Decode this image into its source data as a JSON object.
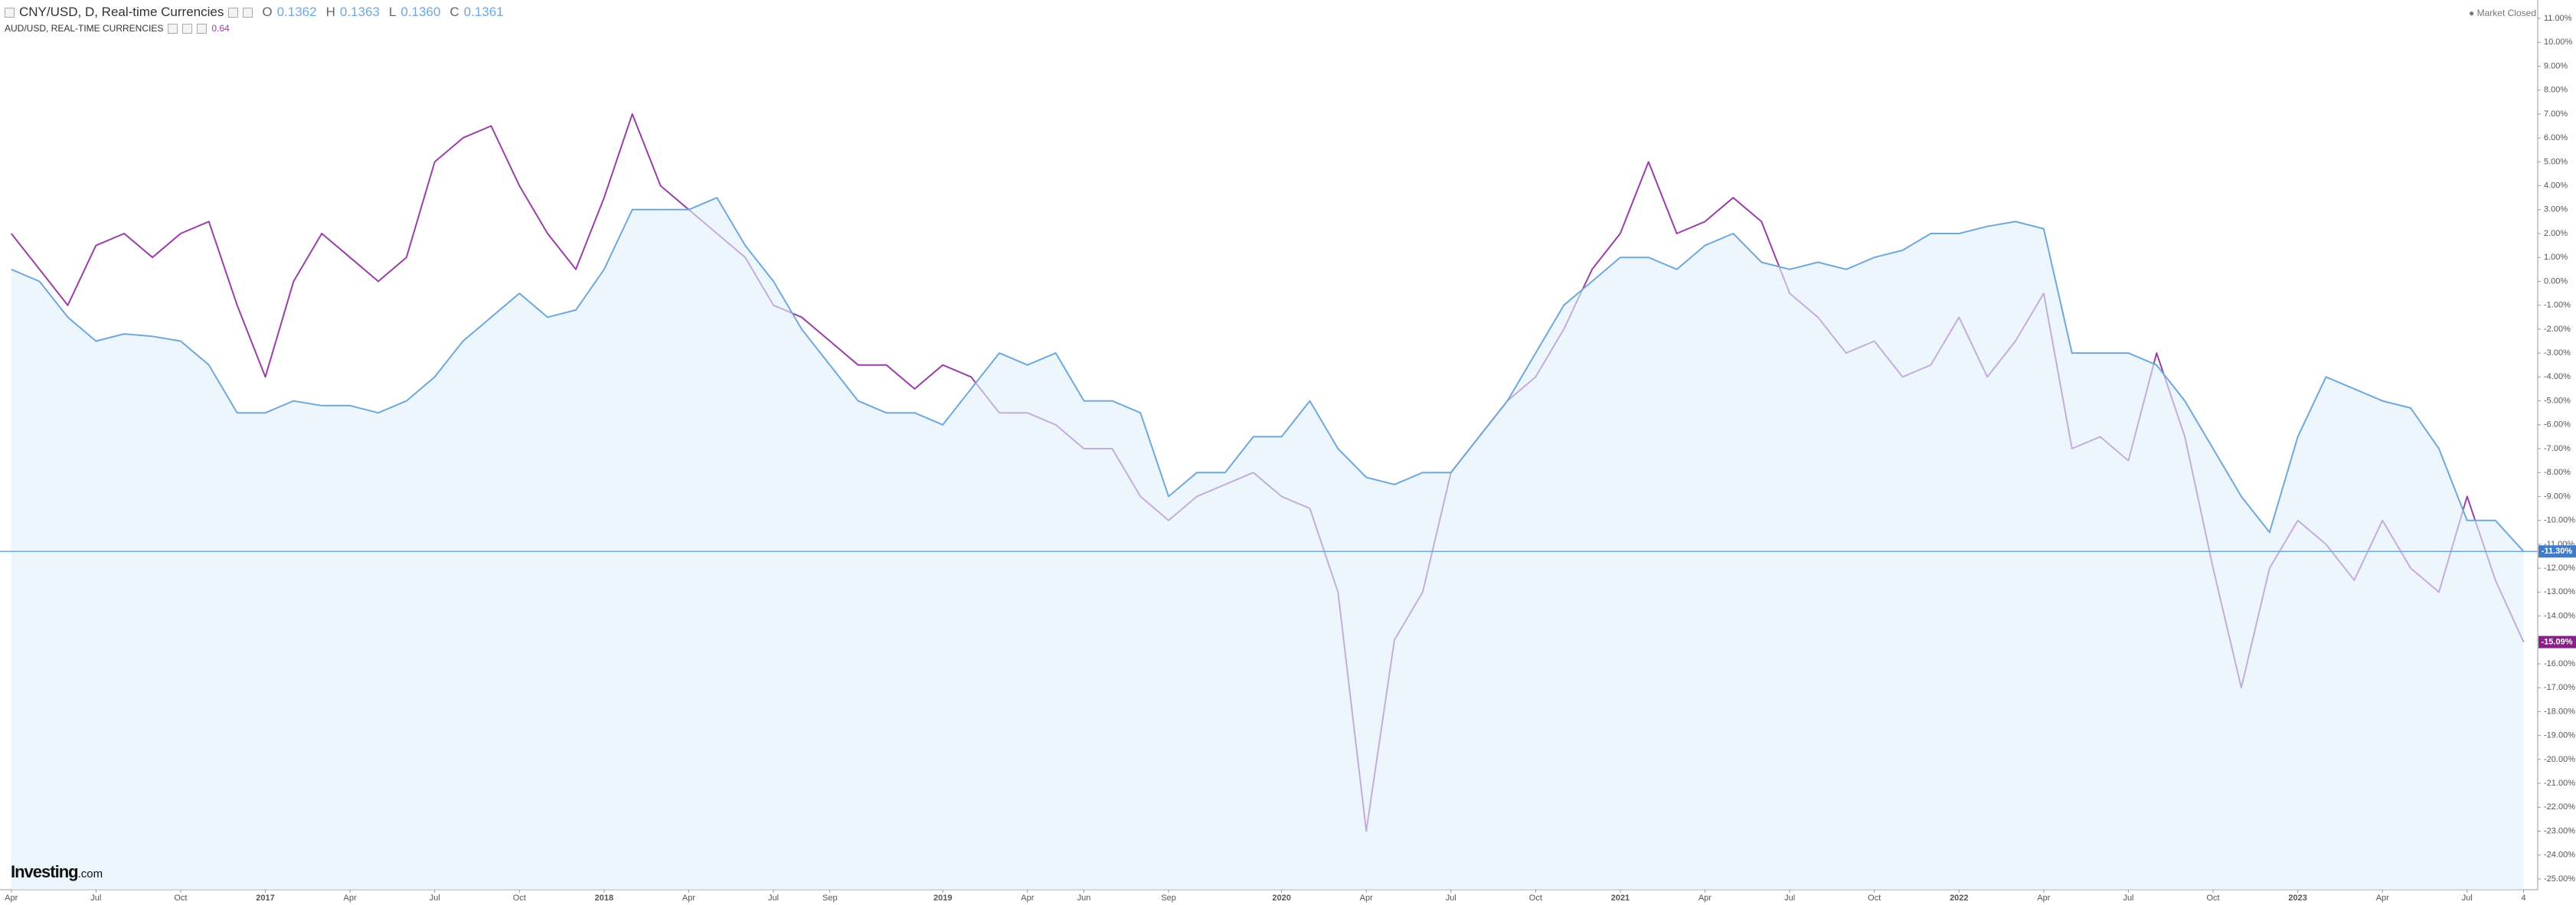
{
  "ui": {
    "main_symbol": "CNY/USD, D, Real-time Currencies",
    "ohlc": [
      {
        "key": "O",
        "value": "0.1362"
      },
      {
        "key": "H",
        "value": "0.1363"
      },
      {
        "key": "L",
        "value": "0.1360"
      },
      {
        "key": "C",
        "value": "0.1361"
      }
    ],
    "compare_symbol": "AUD/USD, REAL-TIME CURRENCIES",
    "compare_value": "0.64",
    "market_status": "Market Closed",
    "logo_main": "Investing",
    "logo_suffix": ".com"
  },
  "chart_data": {
    "type": "line",
    "x": [
      0,
      1,
      2,
      3,
      4,
      5,
      6,
      7,
      8,
      9,
      10,
      11,
      12,
      13,
      14,
      15,
      16,
      17,
      18,
      19,
      20,
      21,
      22,
      23,
      24,
      25,
      26,
      27,
      28,
      29,
      30,
      31,
      32,
      33,
      34,
      35,
      36,
      37,
      38,
      39,
      40,
      41,
      42,
      43,
      44,
      45,
      46,
      47,
      48,
      49,
      50,
      51,
      52,
      53,
      54,
      55,
      56,
      57,
      58,
      59,
      60,
      61,
      62,
      63,
      64,
      65,
      66,
      67,
      68,
      69,
      70,
      71,
      72,
      73,
      74,
      75,
      76,
      77,
      78,
      79,
      80,
      81,
      82,
      83,
      84,
      85,
      86,
      87,
      88,
      89
    ],
    "series": [
      {
        "name": "AUD/USD",
        "color": "#9a3fa8",
        "last_label": "-15.09%",
        "values": [
          2,
          0.5,
          -1,
          1.5,
          2,
          1,
          2,
          2.5,
          -1,
          -4,
          0,
          2,
          1,
          0,
          1,
          5,
          6,
          6.5,
          4,
          2,
          0.5,
          3.5,
          7,
          4,
          3,
          2,
          1,
          -1,
          -1.5,
          -2.5,
          -3.5,
          -3.5,
          -4.5,
          -3.5,
          -4,
          -5.5,
          -5.5,
          -6,
          -7,
          -7,
          -9,
          -10,
          -9,
          -8.5,
          -8,
          -9,
          -9.5,
          -13,
          -23,
          -15,
          -13,
          -8,
          -6.5,
          -5,
          -4,
          -2,
          0.5,
          2,
          5,
          2,
          2.5,
          3.5,
          2.5,
          -0.5,
          -1.5,
          -3,
          -2.5,
          -4,
          -3.5,
          -1.5,
          -4,
          -2.5,
          -0.5,
          -7,
          -6.5,
          -7.5,
          -3,
          -6.5,
          -12,
          -17,
          -12,
          -10,
          -11,
          -12.5,
          -10,
          -12,
          -13,
          -9,
          -12.5,
          -15.09
        ]
      },
      {
        "name": "CNY/USD",
        "color": "#6fa8dc",
        "area": "#e1f0fa",
        "last_label": "-11.30%",
        "values": [
          0.5,
          0,
          -1.5,
          -2.5,
          -2.2,
          -2.3,
          -2.5,
          -3.5,
          -5.5,
          -5.5,
          -5,
          -5.2,
          -5.2,
          -5.5,
          -5,
          -4,
          -2.5,
          -1.5,
          -0.5,
          -1.5,
          -1.2,
          0.5,
          3,
          3,
          3,
          3.5,
          1.5,
          0,
          -2,
          -3.5,
          -5,
          -5.5,
          -5.5,
          -6,
          -4.5,
          -3,
          -3.5,
          -3,
          -5,
          -5,
          -5.5,
          -9,
          -8,
          -8,
          -6.5,
          -6.5,
          -5,
          -7,
          -8.2,
          -8.5,
          -8,
          -8,
          -6.5,
          -5,
          -3,
          -1,
          0,
          1,
          1,
          0.5,
          1.5,
          2,
          0.8,
          0.5,
          0.8,
          0.5,
          1,
          1.3,
          2,
          2,
          2.3,
          2.5,
          2.2,
          -3,
          -3,
          -3,
          -3.5,
          -5,
          -7,
          -9,
          -10.5,
          -6.5,
          -4,
          -4.5,
          -5,
          -5.3,
          -7,
          -10,
          -10,
          -11.3
        ]
      }
    ],
    "xlim": [
      -0.4,
      89.5
    ],
    "xticks": [
      {
        "value": 0,
        "label": "Apr"
      },
      {
        "value": 3,
        "label": "Jul"
      },
      {
        "value": 6,
        "label": "Oct"
      },
      {
        "value": 9,
        "label": "2017"
      },
      {
        "value": 12,
        "label": "Apr"
      },
      {
        "value": 15,
        "label": "Jul"
      },
      {
        "value": 18,
        "label": "Oct"
      },
      {
        "value": 21,
        "label": "2018"
      },
      {
        "value": 24,
        "label": "Apr"
      },
      {
        "value": 27,
        "label": "Jul"
      },
      {
        "value": 29,
        "label": "Sep"
      },
      {
        "value": 33,
        "label": "2019"
      },
      {
        "value": 36,
        "label": "Apr"
      },
      {
        "value": 38,
        "label": "Jun"
      },
      {
        "value": 41,
        "label": "Sep"
      },
      {
        "value": 45,
        "label": "2020"
      },
      {
        "value": 48,
        "label": "Apr"
      },
      {
        "value": 51,
        "label": "Jul"
      },
      {
        "value": 54,
        "label": "Oct"
      },
      {
        "value": 57,
        "label": "2021"
      },
      {
        "value": 60,
        "label": "Apr"
      },
      {
        "value": 63,
        "label": "Jul"
      },
      {
        "value": 66,
        "label": "Oct"
      },
      {
        "value": 69,
        "label": "2022"
      },
      {
        "value": 72,
        "label": "Apr"
      },
      {
        "value": 75,
        "label": "Jul"
      },
      {
        "value": 78,
        "label": "Oct"
      },
      {
        "value": 81,
        "label": "2023"
      },
      {
        "value": 84,
        "label": "Apr"
      },
      {
        "value": 87,
        "label": "Jul"
      },
      {
        "value": 89,
        "label": "4"
      }
    ],
    "ylim": [
      -25.45,
      11.77
    ],
    "yticks": [
      {
        "value": 11,
        "label": "11.00%"
      },
      {
        "value": 10,
        "label": "10.00%"
      },
      {
        "value": 9,
        "label": "9.00%"
      },
      {
        "value": 8,
        "label": "8.00%"
      },
      {
        "value": 7,
        "label": "7.00%"
      },
      {
        "value": 6,
        "label": "6.00%"
      },
      {
        "value": 5,
        "label": "5.00%"
      },
      {
        "value": 4,
        "label": "4.00%"
      },
      {
        "value": 3,
        "label": "3.00%"
      },
      {
        "value": 2,
        "label": "2.00%"
      },
      {
        "value": 1,
        "label": "1.00%"
      },
      {
        "value": 0,
        "label": "0.00%"
      },
      {
        "value": -1,
        "label": "-1.00%"
      },
      {
        "value": -2,
        "label": "-2.00%"
      },
      {
        "value": -3,
        "label": "-3.00%"
      },
      {
        "value": -4,
        "label": "-4.00%"
      },
      {
        "value": -5,
        "label": "-5.00%"
      },
      {
        "value": -6,
        "label": "-6.00%"
      },
      {
        "value": -7,
        "label": "-7.00%"
      },
      {
        "value": -8,
        "label": "-8.00%"
      },
      {
        "value": -9,
        "label": "-9.00%"
      },
      {
        "value": -10,
        "label": "-10.00%"
      },
      {
        "value": -11,
        "label": "-11.00%"
      },
      {
        "value": -12,
        "label": "-12.00%"
      },
      {
        "value": -13,
        "label": "-13.00%"
      },
      {
        "value": -14,
        "label": "-14.00%"
      },
      {
        "value": -15,
        "label": "-15.00%"
      },
      {
        "value": -16,
        "label": "-16.00%"
      },
      {
        "value": -17,
        "label": "-17.00%"
      },
      {
        "value": -18,
        "label": "-18.00%"
      },
      {
        "value": -19,
        "label": "-19.00%"
      },
      {
        "value": -20,
        "label": "-20.00%"
      },
      {
        "value": -21,
        "label": "-21.00%"
      },
      {
        "value": -22,
        "label": "-22.00%"
      },
      {
        "value": -23,
        "label": "-23.00%"
      },
      {
        "value": -24,
        "label": "-24.00%"
      },
      {
        "value": -25,
        "label": "-25.00%"
      }
    ],
    "grid": false
  }
}
